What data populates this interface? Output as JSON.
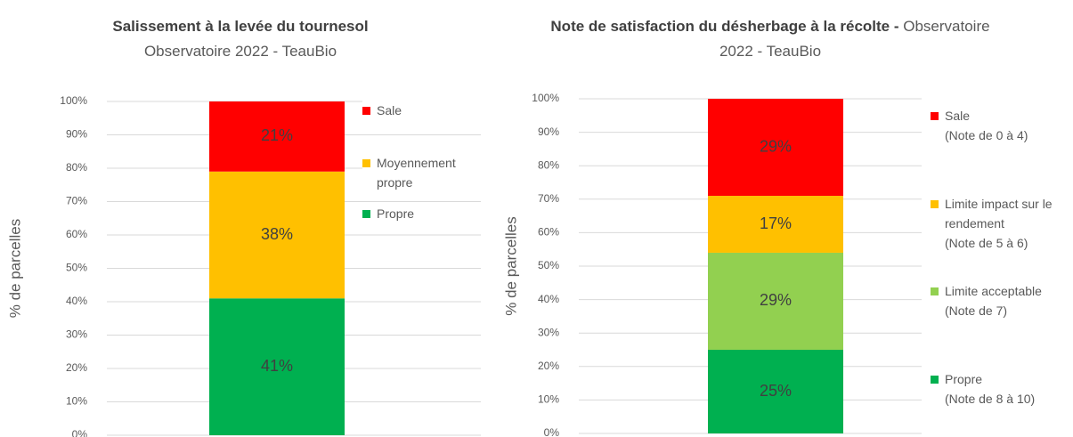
{
  "chart_data": [
    {
      "type": "stacked_bar",
      "title": "Salissement à la levée du tournesol",
      "subtitle": "Observatoire 2022 - TeauBio",
      "y_label": "% de parcelles",
      "ylim": [
        0,
        100
      ],
      "yticks": [
        {
          "value": 0,
          "label": "0%"
        },
        {
          "value": 10,
          "label": "10%"
        },
        {
          "value": 20,
          "label": "20%"
        },
        {
          "value": 30,
          "label": "30%"
        },
        {
          "value": 40,
          "label": "40%"
        },
        {
          "value": 50,
          "label": "50%"
        },
        {
          "value": 60,
          "label": "60%"
        },
        {
          "value": 70,
          "label": "70%"
        },
        {
          "value": 80,
          "label": "80%"
        },
        {
          "value": 90,
          "label": "90%"
        },
        {
          "value": 100,
          "label": "100%"
        }
      ],
      "grid": true,
      "series": [
        {
          "name": "Propre",
          "color": "#00b050",
          "values": [
            41
          ],
          "value_labels": [
            "41%"
          ]
        },
        {
          "name": "Moyennement propre",
          "color": "#ffc000",
          "values": [
            38
          ],
          "value_labels": [
            "38%"
          ]
        },
        {
          "name": "Sale",
          "color": "#ff0000",
          "values": [
            21
          ],
          "value_labels": [
            "21%"
          ]
        }
      ]
    },
    {
      "type": "stacked_bar",
      "title": "Note de satisfaction du désherbage à la récolte -",
      "subtitle": "Observatoire 2022 - TeauBio",
      "y_label": "% de parcelles",
      "ylim": [
        0,
        100
      ],
      "yticks": [
        {
          "value": 0,
          "label": "0%"
        },
        {
          "value": 10,
          "label": "10%"
        },
        {
          "value": 20,
          "label": "20%"
        },
        {
          "value": 30,
          "label": "30%"
        },
        {
          "value": 40,
          "label": "40%"
        },
        {
          "value": 50,
          "label": "50%"
        },
        {
          "value": 60,
          "label": "60%"
        },
        {
          "value": 70,
          "label": "70%"
        },
        {
          "value": 80,
          "label": "80%"
        },
        {
          "value": 90,
          "label": "90%"
        },
        {
          "value": 100,
          "label": "100%"
        }
      ],
      "grid": true,
      "series": [
        {
          "name": "Propre",
          "description": "(Note de 8 à 10)",
          "color": "#00b050",
          "values": [
            25
          ],
          "value_labels": [
            "25%"
          ]
        },
        {
          "name": "Limite acceptable",
          "description": "(Note de 7)",
          "color": "#92d050",
          "values": [
            29
          ],
          "value_labels": [
            "29%"
          ]
        },
        {
          "name": "Limite impact sur le rendement",
          "description": "(Note de 5 à 6)",
          "color": "#ffc000",
          "values": [
            17
          ],
          "value_labels": [
            "17%"
          ]
        },
        {
          "name": "Sale",
          "description": "(Note de 0 à 4)",
          "color": "#ff0000",
          "values": [
            29
          ],
          "value_labels": [
            "29%"
          ]
        }
      ]
    }
  ]
}
